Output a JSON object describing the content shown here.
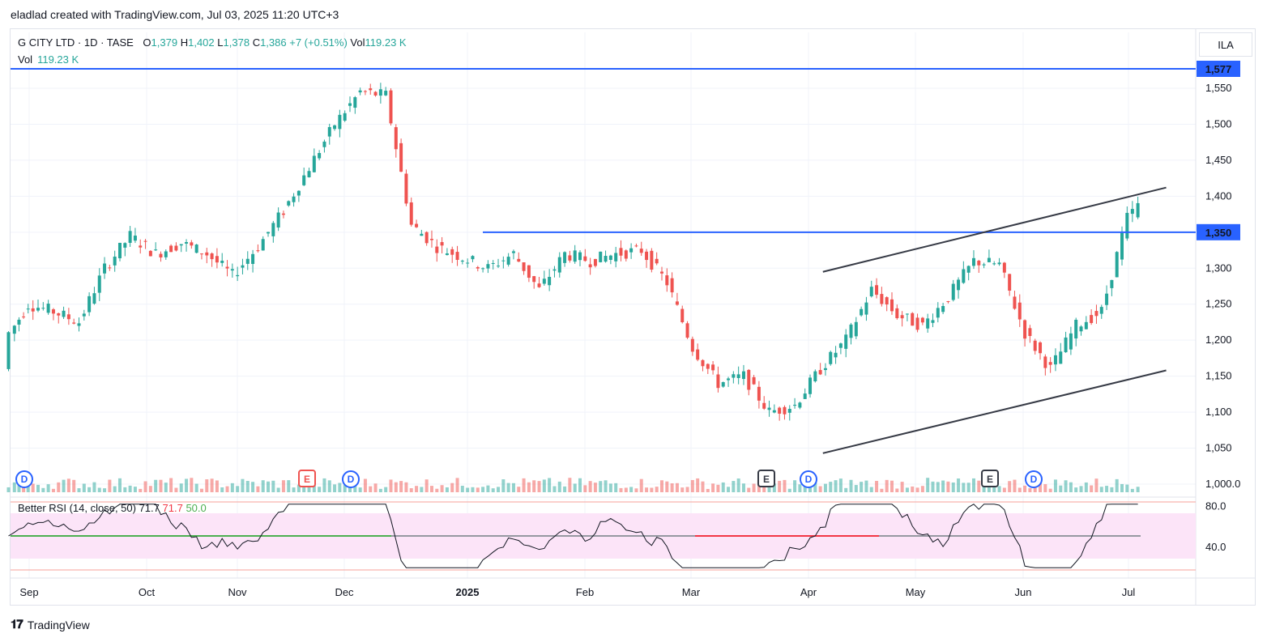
{
  "header": {
    "attribution": "eladlad created with TradingView.com, Jul 03, 2025 11:20 UTC+3"
  },
  "legend": {
    "symbol": "G CITY LTD · 1D · TASE",
    "open_label": "O",
    "open": "1,379",
    "high_label": "H",
    "high": "1,402",
    "low_label": "L",
    "low": "1,378",
    "close_label": "C",
    "close": "1,386",
    "change": "+7 (+0.51%)",
    "vol_label": "Vol",
    "vol": "119.23 K"
  },
  "volume_legend": {
    "label": "Vol",
    "value": "119.23 K"
  },
  "currency": "ILA",
  "price_labels": {
    "resistance_top": "1,577",
    "resistance_mid": "1,350"
  },
  "rsi_legend": {
    "name": "Better RSI (14, close, 50)",
    "v1": "71.7",
    "v2": "71.7",
    "v3": "50.0"
  },
  "footer": {
    "brand": "TradingView"
  },
  "colors": {
    "up": "#26a69a",
    "down": "#ef5350",
    "hline": "#2962ff",
    "trend": "#363a45",
    "rsi_band": "#fce4f8",
    "rsi_mid_green": "#4caf50"
  },
  "chart_data": {
    "type": "candlestick",
    "x": [
      "2024-08-26",
      "2024-08-28",
      "2024-09-02",
      "2024-09-09",
      "2024-09-16",
      "2024-09-23",
      "2024-09-30",
      "2024-10-07",
      "2024-10-14",
      "2024-10-21",
      "2024-10-28",
      "2024-11-04",
      "2024-11-11",
      "2024-11-18",
      "2024-11-25",
      "2024-12-02",
      "2024-12-09",
      "2024-12-16",
      "2024-12-23",
      "2024-12-30",
      "2025-01-06",
      "2025-01-13",
      "2025-01-20",
      "2025-01-27",
      "2025-02-03",
      "2025-02-10",
      "2025-02-17",
      "2025-02-24",
      "2025-03-03",
      "2025-03-10",
      "2025-03-17",
      "2025-03-24",
      "2025-03-31",
      "2025-04-07",
      "2025-04-14",
      "2025-04-21",
      "2025-04-28",
      "2025-05-05",
      "2025-05-12",
      "2025-05-19",
      "2025-05-26",
      "2025-06-02",
      "2025-06-09",
      "2025-06-16",
      "2025-06-23",
      "2025-06-30",
      "2025-07-03"
    ],
    "close": [
      1160,
      1210,
      1250,
      1240,
      1225,
      1300,
      1345,
      1320,
      1335,
      1320,
      1290,
      1330,
      1380,
      1440,
      1500,
      1545,
      1540,
      1360,
      1330,
      1315,
      1300,
      1320,
      1270,
      1320,
      1310,
      1320,
      1325,
      1280,
      1190,
      1140,
      1150,
      1100,
      1110,
      1160,
      1200,
      1270,
      1235,
      1220,
      1260,
      1310,
      1305,
      1210,
      1160,
      1220,
      1240,
      1370,
      1386
    ],
    "ylim": [
      1000,
      1577
    ],
    "y_ticks": [
      "1,000.0",
      "1,050",
      "1,100",
      "1,150",
      "1,200",
      "1,250",
      "1,300",
      "1,350",
      "1,400",
      "1,450",
      "1,500",
      "1,550"
    ],
    "x_ticks": [
      "Sep",
      "Oct",
      "Nov",
      "Dec",
      "2025",
      "Feb",
      "Mar",
      "Apr",
      "May",
      "Jun",
      "Jul"
    ],
    "horizontal_levels": [
      1577,
      1350
    ],
    "trend_channel": {
      "upper": [
        [
          "2025-04-07",
          1295
        ],
        [
          "2025-07-10",
          1412
        ]
      ],
      "lower": [
        [
          "2025-04-07",
          1043
        ],
        [
          "2025-07-10",
          1158
        ]
      ]
    },
    "events": [
      "D",
      "E",
      "D",
      "E",
      "D",
      "E",
      "D"
    ],
    "rsi": {
      "axis_ticks": [
        "80.0",
        "40.0"
      ],
      "last": 71.7,
      "mid": 50.0
    }
  }
}
